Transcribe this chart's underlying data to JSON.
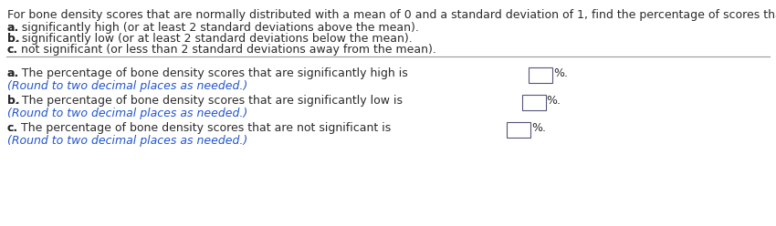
{
  "bg_color": "#ffffff",
  "text_color_black": "#2b2b2b",
  "text_color_blue": "#2255cc",
  "header_line1": "For bone density scores that are normally distributed with a mean of 0 and a standard deviation of 1, find the percentage of scores that are",
  "header_line2_bold": "a.",
  "header_line2_rest": " significantly high (or at least 2 standard deviations above the mean).",
  "header_line3_bold": "b.",
  "header_line3_rest": " significantly low (or at least 2 standard deviations below the mean).",
  "header_line4_bold": "c.",
  "header_line4_rest": " not significant (or less than 2 standard deviations away from the mean).",
  "part_a_bold": "a.",
  "part_a_text": " The percentage of bone density scores that are significantly high is ",
  "part_a_suffix": "%.",
  "part_a_round": "(Round to two decimal places as needed.)",
  "part_b_bold": "b.",
  "part_b_text": " The percentage of bone density scores that are significantly low is ",
  "part_b_suffix": "%.",
  "part_b_round": "(Round to two decimal places as needed.)",
  "part_c_bold": "c.",
  "part_c_text": " The percentage of bone density scores that are not significant is ",
  "part_c_suffix": "%.",
  "part_c_round": "(Round to two decimal places as needed.)",
  "font_size_main": 9.0,
  "font_size_round": 9.0
}
